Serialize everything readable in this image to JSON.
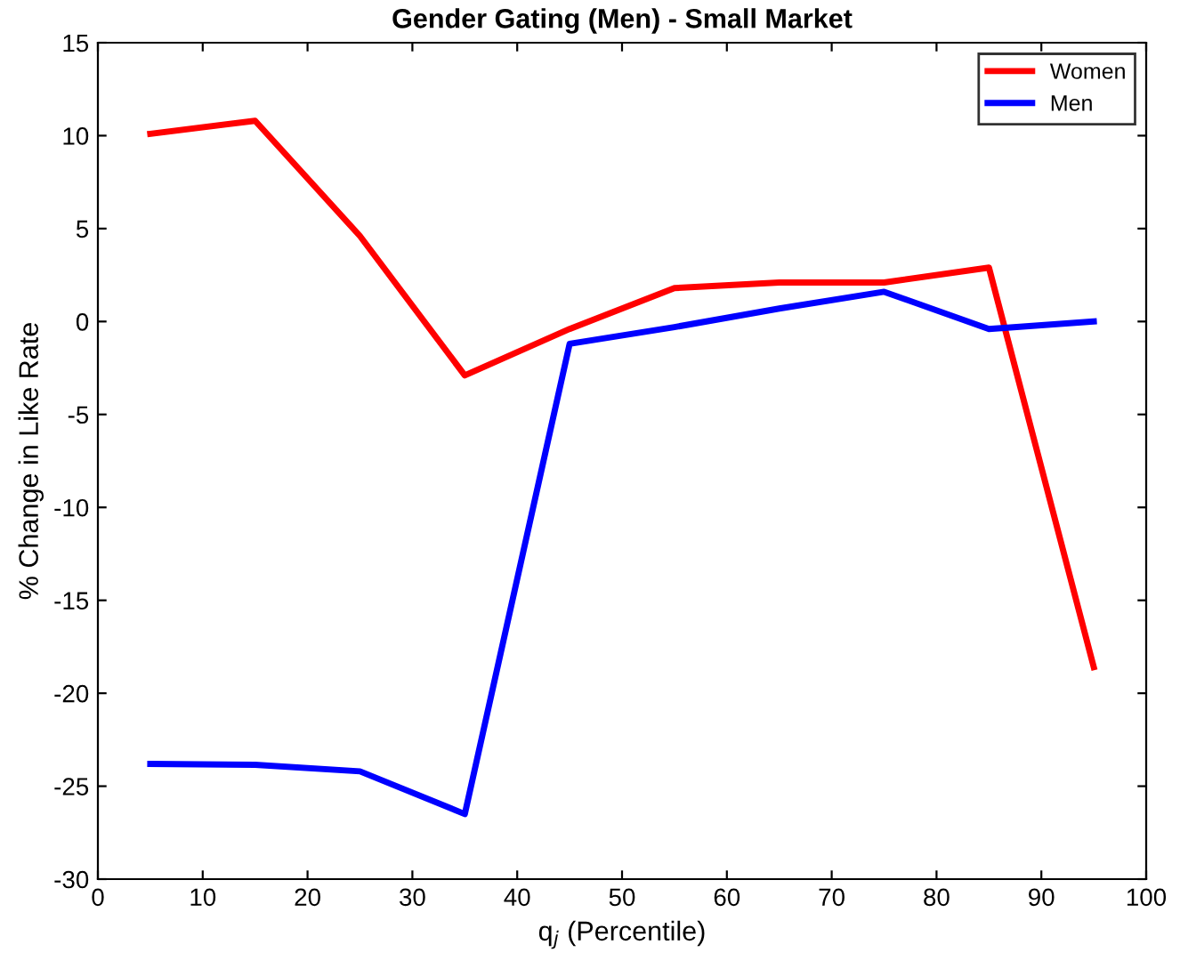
{
  "chart_data": {
    "type": "line",
    "title": "Gender Gating (Men) - Small Market",
    "xlabel": "q$_{j}$ (Percentile)",
    "ylabel": "% Change in Like Rate",
    "x": [
      5,
      15,
      25,
      35,
      45,
      55,
      65,
      75,
      85,
      95
    ],
    "series": [
      {
        "name": "Women",
        "color": "#ff0000",
        "values": [
          10.1,
          10.8,
          4.6,
          -2.9,
          -0.4,
          1.8,
          2.1,
          2.1,
          2.9,
          -18.6
        ]
      },
      {
        "name": "Men",
        "color": "#0000ff",
        "values": [
          -23.8,
          -23.85,
          -24.2,
          -26.5,
          -1.2,
          -0.3,
          0.7,
          1.6,
          -0.4,
          0.0
        ]
      }
    ],
    "xlim": [
      0,
      100
    ],
    "xticks": [
      0,
      10,
      20,
      30,
      40,
      50,
      60,
      70,
      80,
      90,
      100
    ],
    "ylim": [
      -30,
      15
    ],
    "yticks": [
      -30,
      -25,
      -20,
      -15,
      -10,
      -5,
      0,
      5,
      10,
      15
    ],
    "legend": "top right",
    "grid": false,
    "marker": "none",
    "line_style": "solid"
  }
}
